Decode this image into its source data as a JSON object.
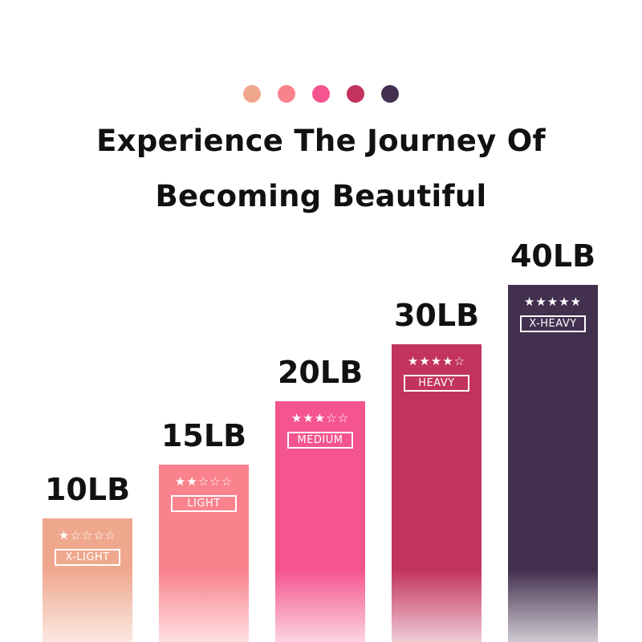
{
  "palette": [
    "#EFA88E",
    "#F9828D",
    "#F5558F",
    "#C2335E",
    "#432F4E"
  ],
  "title_line1": "Experience The Journey Of",
  "title_line2": "Becoming Beautiful",
  "levels": [
    {
      "weight": "10LB",
      "stars": 1,
      "label": "X-LIGHT",
      "color": "#EFA88E"
    },
    {
      "weight": "15LB",
      "stars": 2,
      "label": "LIGHT",
      "color": "#F9828D"
    },
    {
      "weight": "20LB",
      "stars": 3,
      "label": "MEDIUM",
      "color": "#F5558F"
    },
    {
      "weight": "30LB",
      "stars": 4,
      "label": "HEAVY",
      "color": "#C2335E"
    },
    {
      "weight": "40LB",
      "stars": 5,
      "label": "X-HEAVY",
      "color": "#432F4E"
    }
  ]
}
